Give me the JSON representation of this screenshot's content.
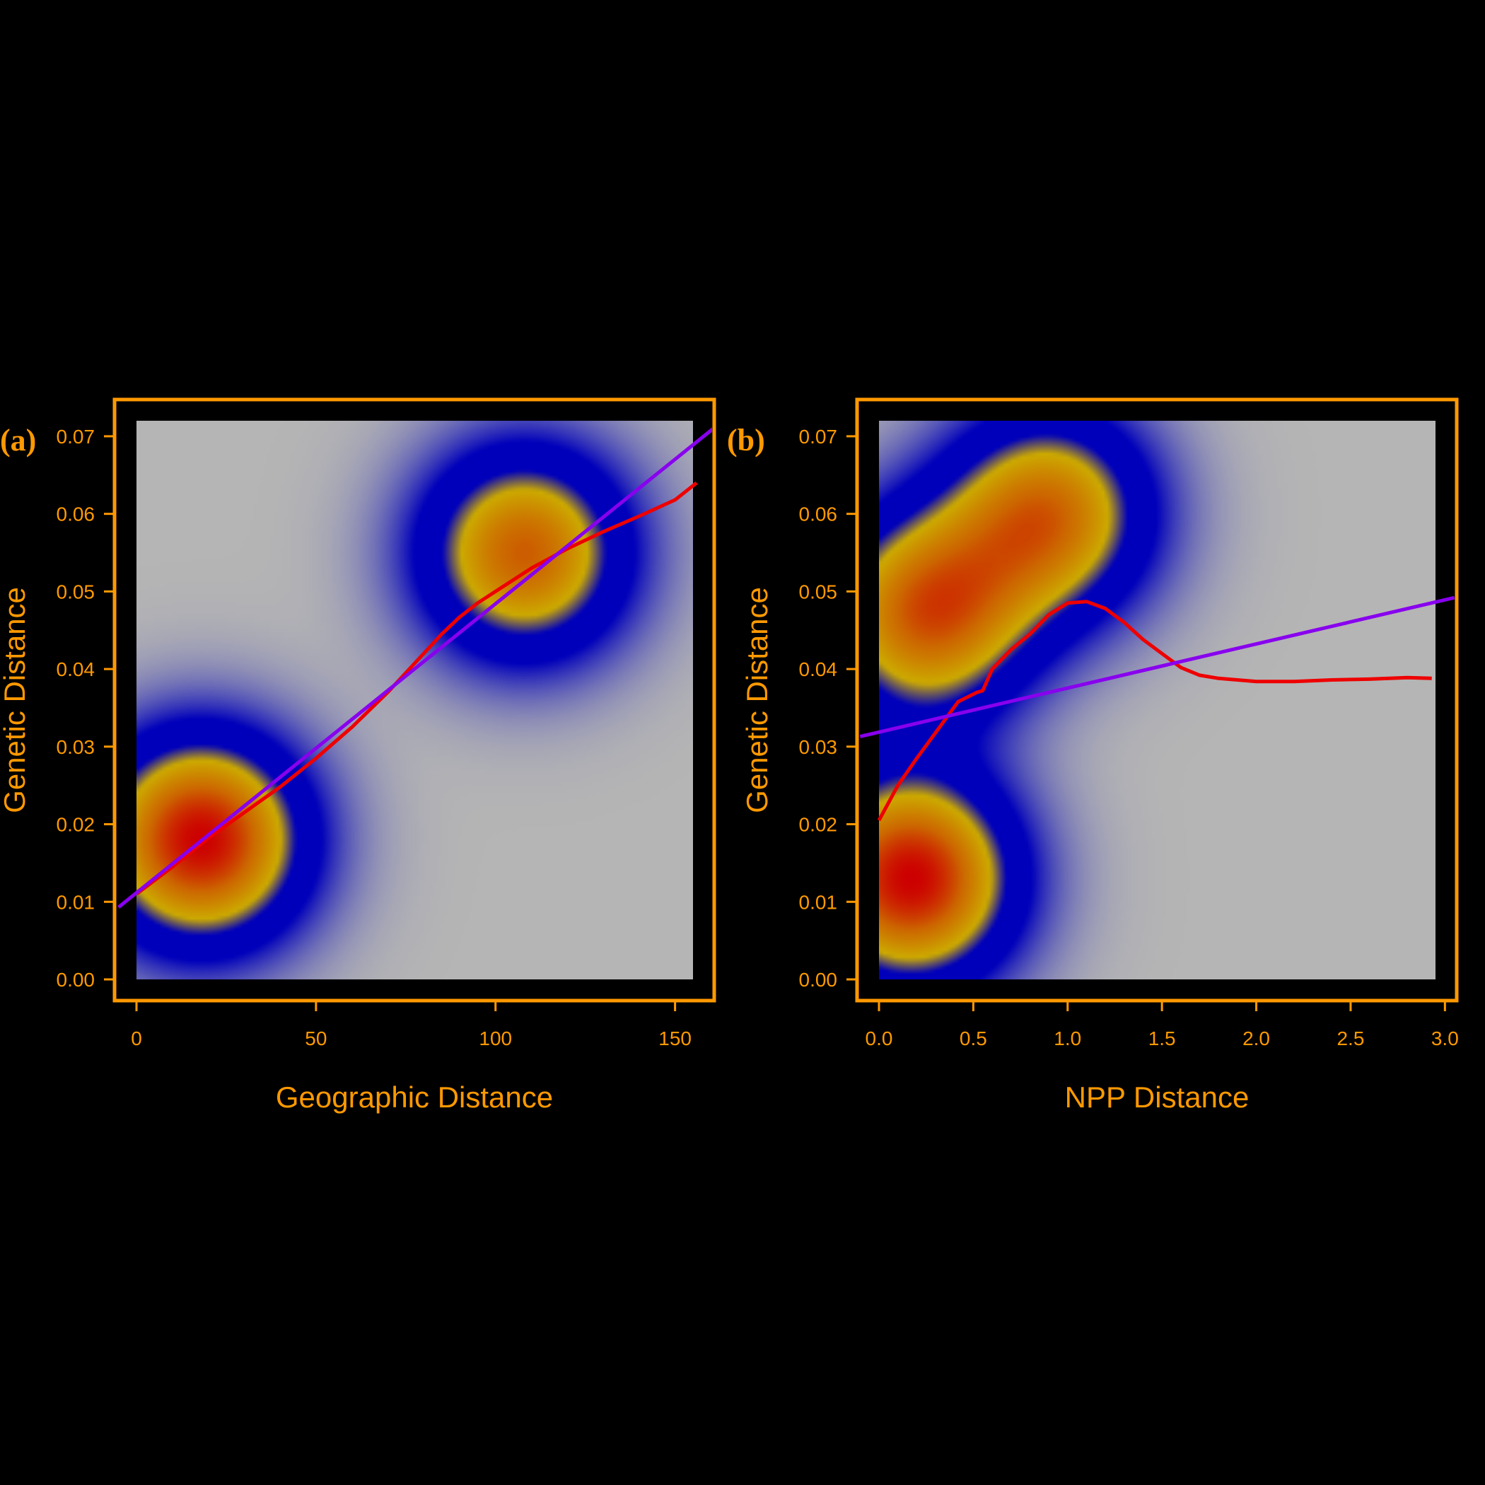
{
  "colors": {
    "background": "#000000",
    "frame": "#FF9900",
    "text": "#FF9900",
    "linear_fit": "#8800EE",
    "smooth_fit": "#EE0000",
    "density_low": "#B5B5B5",
    "density_mid": "#0000BB",
    "density_high_1": "#CCAA00",
    "density_high_2": "#CC6600",
    "density_peak": "#CC0000"
  },
  "chart_data": [
    {
      "type": "heatmap",
      "panel_label": "(a)",
      "xlabel": "Geographic Distance",
      "ylabel": "Genetic Distance",
      "xlim": [
        0,
        155
      ],
      "ylim": [
        0,
        0.072
      ],
      "x_ticks": [
        0,
        50,
        100,
        150
      ],
      "x_tick_labels": [
        "0",
        "50",
        "100",
        "150"
      ],
      "y_ticks": [
        0,
        0.01,
        0.02,
        0.03,
        0.04,
        0.05,
        0.06,
        0.07
      ],
      "y_tick_labels": [
        "0.00",
        "0.01",
        "0.02",
        "0.03",
        "0.04",
        "0.05",
        "0.06",
        "0.07"
      ],
      "density_peaks": [
        {
          "x": 18,
          "y": 0.018,
          "intensity": 1.0
        },
        {
          "x": 108,
          "y": 0.055,
          "intensity": 0.8
        }
      ],
      "linear_fit": {
        "x": [
          -5,
          162
        ],
        "y": [
          0.0093,
          0.0715
        ]
      },
      "smooth_fit": {
        "x": [
          0,
          10,
          20,
          30,
          40,
          50,
          60,
          70,
          75,
          80,
          85,
          90,
          95,
          100,
          110,
          120,
          130,
          140,
          150,
          156
        ],
        "y": [
          0.011,
          0.0145,
          0.0182,
          0.0215,
          0.0248,
          0.0285,
          0.0325,
          0.037,
          0.0395,
          0.042,
          0.0445,
          0.0467,
          0.0485,
          0.05,
          0.053,
          0.0555,
          0.0577,
          0.0597,
          0.0618,
          0.064
        ]
      }
    },
    {
      "type": "heatmap",
      "panel_label": "(b)",
      "xlabel": "NPP Distance",
      "ylabel": "Genetic Distance",
      "xlim": [
        0,
        2.95
      ],
      "ylim": [
        0,
        0.072
      ],
      "x_ticks": [
        0,
        0.5,
        1.0,
        1.5,
        2.0,
        2.5,
        3.0
      ],
      "x_tick_labels": [
        "0.0",
        "0.5",
        "1.0",
        "1.5",
        "2.0",
        "2.5",
        "3.0"
      ],
      "y_ticks": [
        0,
        0.01,
        0.02,
        0.03,
        0.04,
        0.05,
        0.06,
        0.07
      ],
      "y_tick_labels": [
        "0.00",
        "0.01",
        "0.02",
        "0.03",
        "0.04",
        "0.05",
        "0.06",
        "0.07"
      ],
      "density_peaks": [
        {
          "x": 0.17,
          "y": 0.013,
          "intensity": 1.0
        },
        {
          "x": 0.25,
          "y": 0.047,
          "intensity": 0.8
        },
        {
          "x": 0.9,
          "y": 0.06,
          "intensity": 0.75
        }
      ],
      "linear_fit": {
        "x": [
          -0.1,
          3.05
        ],
        "y": [
          0.0313,
          0.0492
        ]
      },
      "smooth_fit": {
        "x": [
          0.0,
          0.1,
          0.2,
          0.3,
          0.42,
          0.52,
          0.55,
          0.6,
          0.7,
          0.8,
          0.9,
          1.0,
          1.1,
          1.2,
          1.3,
          1.4,
          1.5,
          1.6,
          1.7,
          1.8,
          2.0,
          2.2,
          2.4,
          2.6,
          2.8,
          2.93
        ],
        "y": [
          0.0205,
          0.025,
          0.0285,
          0.0318,
          0.0358,
          0.037,
          0.0372,
          0.04,
          0.0425,
          0.0445,
          0.047,
          0.0485,
          0.0487,
          0.0478,
          0.046,
          0.0438,
          0.042,
          0.0402,
          0.0392,
          0.0388,
          0.0384,
          0.0384,
          0.0386,
          0.0387,
          0.0389,
          0.0388
        ]
      }
    }
  ]
}
